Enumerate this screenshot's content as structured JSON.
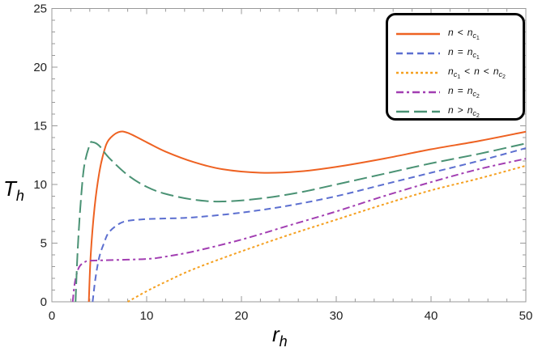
{
  "chart_data": {
    "type": "line",
    "xlabel": {
      "main": "r",
      "sub": "h"
    },
    "ylabel": {
      "main": "T",
      "sub": "h"
    },
    "xlim": [
      0,
      50
    ],
    "ylim": [
      0,
      25
    ],
    "xticks": [
      "0",
      "10",
      "20",
      "30",
      "40",
      "50"
    ],
    "yticks": [
      "0",
      "5",
      "10",
      "15",
      "20",
      "25"
    ],
    "grid": false,
    "legend_position": "top-right",
    "series": [
      {
        "name": "n < n_c1",
        "color": "#EE6222",
        "dash": "solid",
        "legend": [
          {
            "t": "n"
          },
          {
            "op": "<"
          },
          {
            "t": "n",
            "sub": "c",
            "subsub": "1"
          }
        ],
        "points": [
          [
            3.9,
            0
          ],
          [
            4.1,
            4
          ],
          [
            4.5,
            8
          ],
          [
            5,
            11
          ],
          [
            5.5,
            12.8
          ],
          [
            6,
            13.8
          ],
          [
            7,
            14.45
          ],
          [
            8,
            14.4
          ],
          [
            10,
            13.6
          ],
          [
            12,
            12.8
          ],
          [
            15,
            11.9
          ],
          [
            18,
            11.3
          ],
          [
            22,
            11.0
          ],
          [
            26,
            11.1
          ],
          [
            30,
            11.5
          ],
          [
            35,
            12.2
          ],
          [
            40,
            13.0
          ],
          [
            45,
            13.7
          ],
          [
            50,
            14.5
          ]
        ]
      },
      {
        "name": "n = n_c1",
        "color": "#5C6FD0",
        "dash": "dashed",
        "legend": [
          {
            "t": "n"
          },
          {
            "op": "="
          },
          {
            "t": "n",
            "sub": "c",
            "subsub": "1"
          }
        ],
        "points": [
          [
            4.3,
            0
          ],
          [
            4.6,
            2
          ],
          [
            5,
            3.8
          ],
          [
            5.5,
            5
          ],
          [
            6,
            5.9
          ],
          [
            7,
            6.6
          ],
          [
            8,
            6.9
          ],
          [
            10,
            7.05
          ],
          [
            12,
            7.1
          ],
          [
            15,
            7.2
          ],
          [
            20,
            7.6
          ],
          [
            25,
            8.2
          ],
          [
            30,
            9.0
          ],
          [
            35,
            10.0
          ],
          [
            40,
            11.0
          ],
          [
            45,
            12.0
          ],
          [
            50,
            13.1
          ]
        ]
      },
      {
        "name": "n_c1 < n < n_c2",
        "color": "#F5A020",
        "dash": "dotted",
        "legend": [
          {
            "t": "n",
            "sub": "c",
            "subsub": "1"
          },
          {
            "op": "<"
          },
          {
            "t": "n"
          },
          {
            "op": "<"
          },
          {
            "t": "n",
            "sub": "c",
            "subsub": "2"
          }
        ],
        "points": [
          [
            8,
            0
          ],
          [
            10,
            0.9
          ],
          [
            12,
            1.7
          ],
          [
            15,
            2.8
          ],
          [
            20,
            4.3
          ],
          [
            25,
            5.7
          ],
          [
            30,
            7.0
          ],
          [
            35,
            8.3
          ],
          [
            40,
            9.5
          ],
          [
            45,
            10.5
          ],
          [
            50,
            11.6
          ]
        ]
      },
      {
        "name": "n = n_c2",
        "color": "#A23EB2",
        "dash": "dashdot",
        "legend": [
          {
            "t": "n"
          },
          {
            "op": "="
          },
          {
            "t": "n",
            "sub": "c",
            "subsub": "2"
          }
        ],
        "points": [
          [
            2.2,
            0
          ],
          [
            2.4,
            1.5
          ],
          [
            2.7,
            2.6
          ],
          [
            3,
            3.1
          ],
          [
            3.5,
            3.4
          ],
          [
            4,
            3.5
          ],
          [
            6,
            3.55
          ],
          [
            10,
            3.65
          ],
          [
            12,
            3.85
          ],
          [
            15,
            4.3
          ],
          [
            20,
            5.3
          ],
          [
            25,
            6.5
          ],
          [
            30,
            7.7
          ],
          [
            35,
            9.0
          ],
          [
            40,
            10.2
          ],
          [
            45,
            11.3
          ],
          [
            50,
            12.2
          ]
        ]
      },
      {
        "name": "n > n_c2",
        "color": "#4A9274",
        "dash": "longdash",
        "legend": [
          {
            "t": "n"
          },
          {
            "op": ">"
          },
          {
            "t": "n",
            "sub": "c",
            "subsub": "2"
          }
        ],
        "points": [
          [
            2.5,
            0
          ],
          [
            2.7,
            4
          ],
          [
            3,
            8
          ],
          [
            3.4,
            11.5
          ],
          [
            4,
            13.4
          ],
          [
            4.3,
            13.6
          ],
          [
            5,
            13.3
          ],
          [
            6,
            12.3
          ],
          [
            8,
            10.8
          ],
          [
            10,
            9.8
          ],
          [
            12,
            9.2
          ],
          [
            15,
            8.7
          ],
          [
            18,
            8.55
          ],
          [
            22,
            8.8
          ],
          [
            26,
            9.3
          ],
          [
            30,
            10.0
          ],
          [
            35,
            10.9
          ],
          [
            40,
            11.8
          ],
          [
            45,
            12.6
          ],
          [
            50,
            13.5
          ]
        ]
      }
    ]
  }
}
